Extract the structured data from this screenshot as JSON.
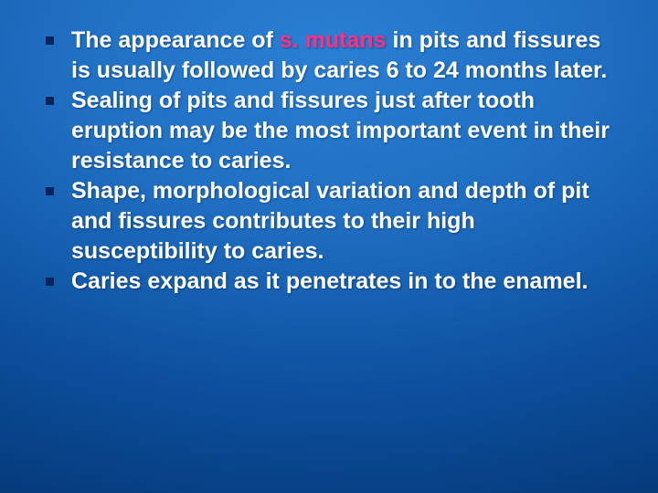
{
  "slide": {
    "background": {
      "gradient_center": "#2a7fd4",
      "gradient_mid": "#1f6ec2",
      "gradient_outer": "#0d4f9e",
      "gradient_edge": "#053a7a"
    },
    "text_color": "#ffffff",
    "highlight_color": "#ff3086",
    "bullet_color": "#06255c",
    "font_size_pt": 19,
    "font_weight": "bold",
    "font_family": "Verdana",
    "bullets": [
      {
        "pre": "The appearance of ",
        "highlight": "s. mutans",
        "post": " in pits and fissures is usually followed by caries 6 to 24 months later."
      },
      {
        "text": "Sealing of pits and fissures just after tooth eruption may be the most important event in their resistance to caries."
      },
      {
        "text": " Shape, morphological variation and depth of pit and fissures contributes to their high susceptibility to caries."
      },
      {
        "text": "Caries expand as it penetrates in to the enamel."
      }
    ]
  }
}
